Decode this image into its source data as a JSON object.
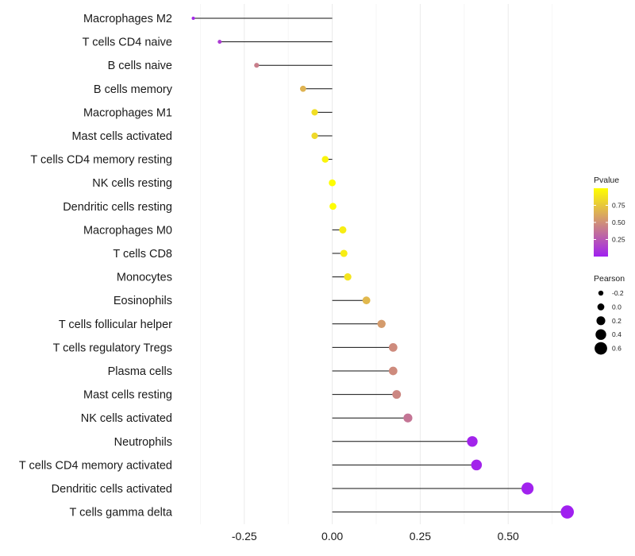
{
  "chart_data": {
    "type": "lollipop",
    "orientation": "horizontal",
    "title": "",
    "xlabel": "",
    "ylabel": "",
    "xlim": [
      -0.43,
      0.68
    ],
    "x_ticks": [
      -0.25,
      0.0,
      0.25,
      0.5
    ],
    "x_tick_labels": [
      "-0.25",
      "0.00",
      "0.25",
      "0.50"
    ],
    "grid": true,
    "categories": [
      "Macrophages M2",
      "T cells CD4 naive",
      "B cells naive",
      "B cells memory",
      "Macrophages M1",
      "Mast cells activated",
      "T cells CD4 memory resting",
      "NK cells resting",
      "Dendritic cells resting",
      "Macrophages M0",
      "T cells CD8",
      "Monocytes",
      "Eosinophils",
      "T cells follicular helper",
      "T cells regulatory  Tregs ",
      "Plasma cells",
      "Mast cells resting",
      "NK cells activated",
      "Neutrophils",
      "T cells CD4 memory activated",
      "Dendritic cells activated",
      "T cells gamma delta"
    ],
    "pearson": [
      -0.395,
      -0.32,
      -0.215,
      -0.083,
      -0.05,
      -0.05,
      -0.02,
      0.0,
      0.002,
      0.03,
      0.033,
      0.044,
      0.097,
      0.14,
      0.173,
      0.173,
      0.183,
      0.215,
      0.398,
      0.41,
      0.555,
      0.668
    ],
    "pvalue": [
      0.03,
      0.12,
      0.42,
      0.66,
      0.85,
      0.83,
      0.95,
      0.99,
      0.99,
      0.92,
      0.92,
      0.88,
      0.68,
      0.55,
      0.48,
      0.48,
      0.46,
      0.38,
      0.02,
      0.02,
      0.01,
      0.001
    ],
    "legend": {
      "position": "right",
      "pvalue": {
        "title": "Pvalue",
        "range": [
          0.0,
          1.0
        ],
        "ticks": [
          0.25,
          0.5,
          0.75
        ],
        "tick_labels": [
          "0.25",
          "0.50",
          "0.75"
        ],
        "color_low": "#a020f0",
        "color_high": "#ffff00"
      },
      "pearson": {
        "title": "Pearson",
        "values": [
          -0.2,
          0.0,
          0.2,
          0.4,
          0.6
        ],
        "labels": [
          "-0.2",
          "0.0",
          "0.2",
          "0.4",
          "0.6"
        ]
      }
    }
  }
}
